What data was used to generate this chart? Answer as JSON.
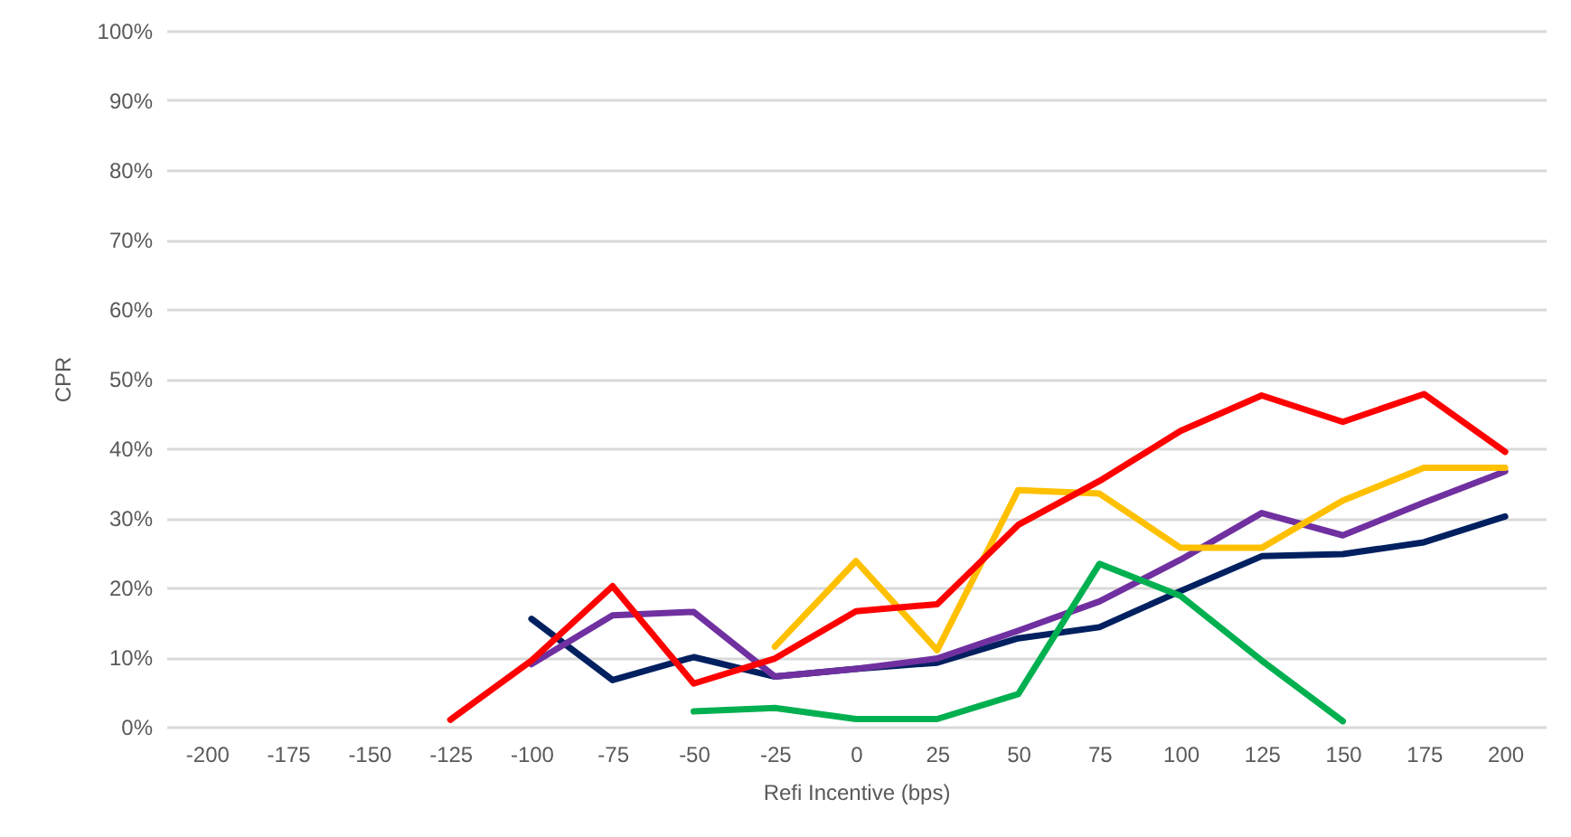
{
  "chart_data": {
    "type": "line",
    "xlabel": "Refi Incentive (bps)",
    "ylabel": "CPR",
    "categories": [
      "-200",
      "-175",
      "-150",
      "-125",
      "-100",
      "-75",
      "-50",
      "-25",
      "0",
      "25",
      "50",
      "75",
      "100",
      "125",
      "150",
      "175",
      "200"
    ],
    "ylim": [
      0,
      100
    ],
    "yticks": [
      {
        "value": 0,
        "label": "0%"
      },
      {
        "value": 10,
        "label": "10%"
      },
      {
        "value": 20,
        "label": "20%"
      },
      {
        "value": 30,
        "label": "30%"
      },
      {
        "value": 40,
        "label": "40%"
      },
      {
        "value": 50,
        "label": "50%"
      },
      {
        "value": 60,
        "label": "60%"
      },
      {
        "value": 70,
        "label": "70%"
      },
      {
        "value": 80,
        "label": "80%"
      },
      {
        "value": 90,
        "label": "90%"
      },
      {
        "value": 100,
        "label": "100%"
      }
    ],
    "grid": "y",
    "marker": "none",
    "line_style": "solid",
    "series": [
      {
        "color": "#002060",
        "values": [
          null,
          null,
          null,
          null,
          15.5,
          6.7,
          10,
          7.2,
          8.3,
          9.2,
          12.7,
          14.3,
          19.5,
          24.5,
          24.8,
          26.5,
          30.2
        ]
      },
      {
        "color": "#7030a0",
        "values": [
          null,
          null,
          null,
          null,
          9,
          16,
          16.5,
          7.2,
          8.3,
          9.8,
          13.8,
          18,
          24,
          30.7,
          27.5,
          32.2,
          36.7
        ]
      },
      {
        "color": "#ffc000",
        "values": [
          null,
          null,
          null,
          null,
          null,
          null,
          null,
          11.5,
          23.8,
          11,
          34,
          33.5,
          25.7,
          25.7,
          32.5,
          37.2,
          37.2
        ]
      },
      {
        "color": "#ff0000",
        "values": [
          null,
          null,
          null,
          1,
          9.5,
          20.2,
          6.2,
          9.8,
          16.6,
          17.6,
          29,
          35.3,
          42.5,
          47.6,
          43.8,
          47.8,
          39.5
        ]
      },
      {
        "color": "#00b050",
        "values": [
          null,
          null,
          null,
          null,
          null,
          null,
          2.2,
          2.7,
          1.1,
          1.1,
          4.7,
          23.4,
          18.8,
          9.5,
          0.8,
          null,
          null
        ]
      }
    ]
  }
}
